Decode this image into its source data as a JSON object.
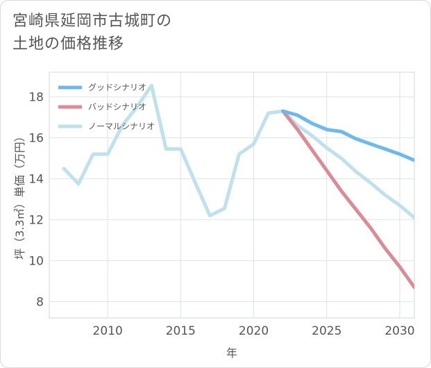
{
  "title_lines": [
    "宮崎県延岡市古城町の",
    "土地の価格推移"
  ],
  "chart_data": {
    "type": "line",
    "title": "宮崎県延岡市古城町の土地の価格推移",
    "xlabel": "年",
    "ylabel": "坪（3.3㎡）単価（万円）",
    "xlim": [
      2006,
      2031
    ],
    "ylim": [
      7.2,
      19.2
    ],
    "xticks": [
      2010,
      2015,
      2020,
      2025,
      2030
    ],
    "yticks": [
      8,
      10,
      12,
      14,
      16,
      18
    ],
    "series": [
      {
        "name": "グッドシナリオ",
        "color": "#6cb9ef",
        "x": [
          2022,
          2023,
          2024,
          2025,
          2026,
          2027,
          2028,
          2029,
          2030,
          2031
        ],
        "values": [
          17.3,
          17.1,
          16.7,
          16.4,
          16.3,
          15.95,
          15.7,
          15.45,
          15.2,
          14.9
        ]
      },
      {
        "name": "バッドシナリオ",
        "color": "#dc8b94",
        "x": [
          2022,
          2023,
          2024,
          2025,
          2026,
          2027,
          2028,
          2029,
          2030,
          2031
        ],
        "values": [
          17.3,
          16.4,
          15.4,
          14.4,
          13.4,
          12.5,
          11.6,
          10.6,
          9.7,
          8.7
        ]
      },
      {
        "name": "ノーマルシナリオ",
        "color": "#bfe0ed",
        "x": [
          2007,
          2008,
          2009,
          2010,
          2011,
          2012,
          2013,
          2014,
          2015,
          2016,
          2017,
          2018,
          2019,
          2020,
          2021,
          2022,
          2023,
          2024,
          2025,
          2026,
          2027,
          2028,
          2029,
          2030,
          2031
        ],
        "values": [
          14.5,
          13.75,
          15.2,
          15.2,
          16.6,
          17.5,
          18.55,
          15.45,
          15.45,
          13.8,
          12.2,
          12.55,
          15.2,
          15.7,
          17.2,
          17.3,
          16.6,
          16.1,
          15.5,
          15.0,
          14.35,
          13.8,
          13.2,
          12.7,
          12.1
        ]
      }
    ],
    "legend_position": "top-left"
  }
}
